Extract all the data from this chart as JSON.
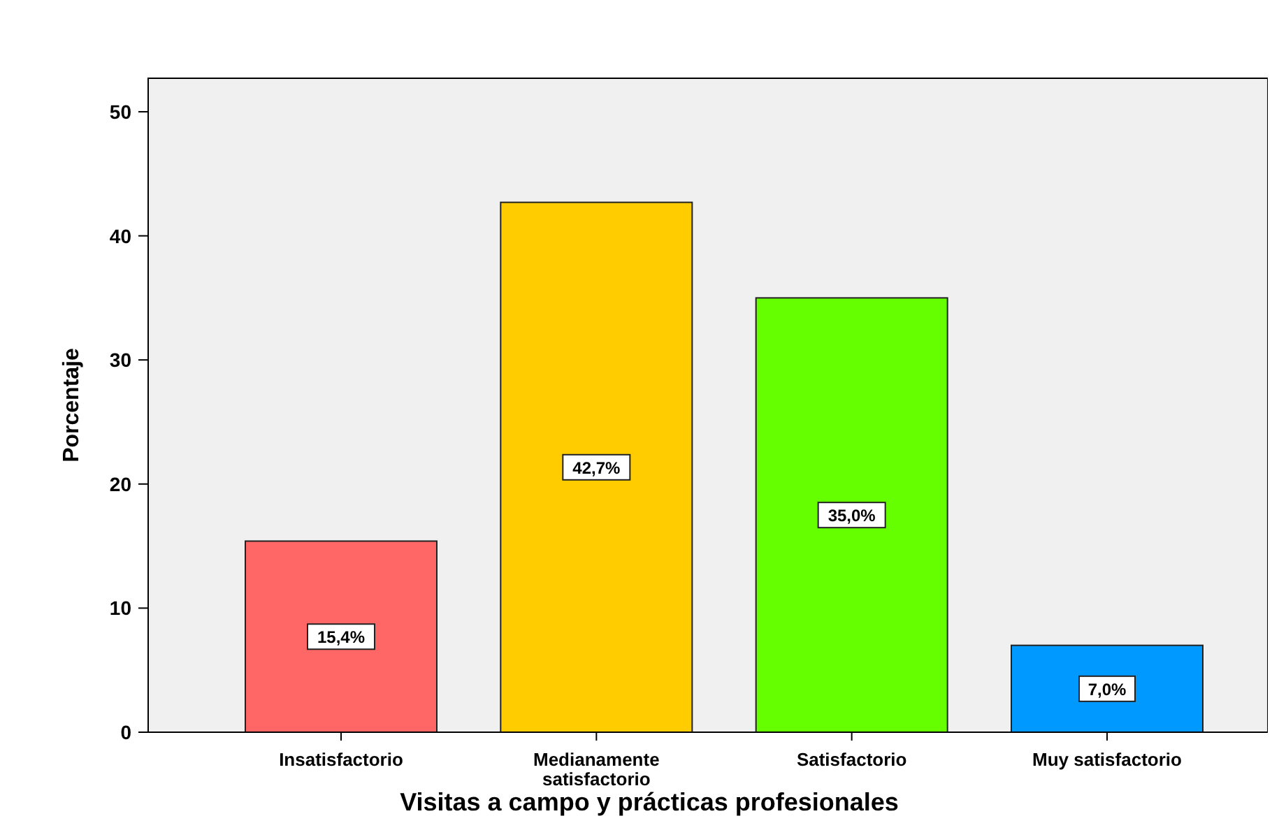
{
  "chart_data": {
    "type": "bar",
    "xlabel": "Visitas a campo y prácticas profesionales",
    "ylabel": "Porcentaje",
    "categories": [
      "Insatisfactorio",
      "Medianamente satisfactorio",
      "Satisfactorio",
      "Muy satisfactorio"
    ],
    "values": [
      15.4,
      42.7,
      35.0,
      7.0
    ],
    "colors": [
      "#ff6666",
      "#ffcc00",
      "#66ff00",
      "#0099ff"
    ],
    "value_labels": [
      "15,4%",
      "42,7%",
      "35,0%",
      "7,0%"
    ],
    "ylim": [
      0,
      52.7
    ],
    "yticks": [
      0,
      10,
      20,
      30,
      40,
      50
    ],
    "grid": false
  }
}
